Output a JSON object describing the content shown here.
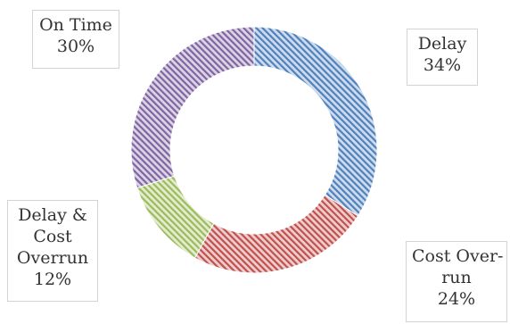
{
  "chart_data": {
    "type": "pie",
    "donut": true,
    "categories": [
      "Delay",
      "Cost Overrun",
      "Delay & Cost Overrun",
      "On Time"
    ],
    "values": [
      34,
      24,
      12,
      30
    ],
    "colors": [
      "#4f81bd",
      "#c0504d",
      "#9bbb59",
      "#8064a2"
    ],
    "fill_pattern": "diagonal-hatch",
    "labels": [
      {
        "lines": [
          "Delay",
          "34%"
        ]
      },
      {
        "lines": [
          "Cost Over-",
          "run",
          "24%"
        ]
      },
      {
        "lines": [
          "Delay &",
          "Cost",
          "Overrun",
          "12%"
        ]
      },
      {
        "lines": [
          "On Time",
          "30%"
        ]
      }
    ]
  }
}
